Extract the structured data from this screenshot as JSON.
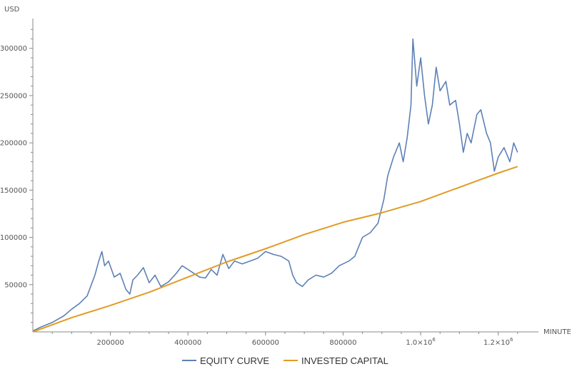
{
  "chart_data": {
    "type": "line",
    "xlabel": "MINUTE",
    "ylabel": "USD",
    "xlim": [
      0,
      1300000
    ],
    "ylim": [
      0,
      330000
    ],
    "x_ticks": [
      {
        "value": 200000,
        "label": "200000"
      },
      {
        "value": 400000,
        "label": "400000"
      },
      {
        "value": 600000,
        "label": "600000"
      },
      {
        "value": 800000,
        "label": "800000"
      },
      {
        "value": 1000000,
        "label": "1.0×10",
        "exp": "6"
      },
      {
        "value": 1200000,
        "label": "1.2×10",
        "exp": "6"
      }
    ],
    "y_ticks": [
      {
        "value": 50000,
        "label": "50000"
      },
      {
        "value": 100000,
        "label": "100000"
      },
      {
        "value": 150000,
        "label": "150000"
      },
      {
        "value": 200000,
        "label": "200000"
      },
      {
        "value": 250000,
        "label": "250000"
      },
      {
        "value": 300000,
        "label": "300000"
      }
    ],
    "grid": false,
    "legend": "bottom",
    "series": [
      {
        "name": "EQUITY CURVE",
        "color": "#5e81b5",
        "points": [
          [
            0,
            1000
          ],
          [
            20000,
            5000
          ],
          [
            50000,
            10000
          ],
          [
            80000,
            17000
          ],
          [
            100000,
            24000
          ],
          [
            120000,
            30000
          ],
          [
            140000,
            38000
          ],
          [
            160000,
            60000
          ],
          [
            170000,
            75000
          ],
          [
            178000,
            85000
          ],
          [
            185000,
            70000
          ],
          [
            195000,
            75000
          ],
          [
            210000,
            58000
          ],
          [
            225000,
            62000
          ],
          [
            240000,
            45000
          ],
          [
            250000,
            40000
          ],
          [
            258000,
            55000
          ],
          [
            270000,
            60000
          ],
          [
            285000,
            68000
          ],
          [
            300000,
            52000
          ],
          [
            315000,
            60000
          ],
          [
            330000,
            48000
          ],
          [
            350000,
            53000
          ],
          [
            370000,
            62000
          ],
          [
            385000,
            70000
          ],
          [
            400000,
            66000
          ],
          [
            415000,
            62000
          ],
          [
            430000,
            58000
          ],
          [
            445000,
            57000
          ],
          [
            460000,
            66000
          ],
          [
            475000,
            60000
          ],
          [
            490000,
            82000
          ],
          [
            505000,
            67000
          ],
          [
            520000,
            75000
          ],
          [
            540000,
            72000
          ],
          [
            560000,
            75000
          ],
          [
            580000,
            78000
          ],
          [
            600000,
            85000
          ],
          [
            620000,
            82000
          ],
          [
            640000,
            80000
          ],
          [
            660000,
            75000
          ],
          [
            670000,
            60000
          ],
          [
            680000,
            52000
          ],
          [
            695000,
            48000
          ],
          [
            710000,
            55000
          ],
          [
            730000,
            60000
          ],
          [
            750000,
            58000
          ],
          [
            770000,
            62000
          ],
          [
            790000,
            70000
          ],
          [
            815000,
            75000
          ],
          [
            830000,
            80000
          ],
          [
            850000,
            100000
          ],
          [
            870000,
            105000
          ],
          [
            890000,
            115000
          ],
          [
            905000,
            140000
          ],
          [
            915000,
            165000
          ],
          [
            930000,
            185000
          ],
          [
            945000,
            200000
          ],
          [
            955000,
            180000
          ],
          [
            965000,
            205000
          ],
          [
            975000,
            240000
          ],
          [
            980000,
            310000
          ],
          [
            990000,
            260000
          ],
          [
            1000000,
            290000
          ],
          [
            1010000,
            250000
          ],
          [
            1020000,
            220000
          ],
          [
            1030000,
            240000
          ],
          [
            1040000,
            280000
          ],
          [
            1050000,
            255000
          ],
          [
            1065000,
            265000
          ],
          [
            1075000,
            240000
          ],
          [
            1090000,
            245000
          ],
          [
            1100000,
            220000
          ],
          [
            1110000,
            190000
          ],
          [
            1120000,
            210000
          ],
          [
            1130000,
            200000
          ],
          [
            1145000,
            230000
          ],
          [
            1155000,
            235000
          ],
          [
            1170000,
            210000
          ],
          [
            1180000,
            200000
          ],
          [
            1190000,
            170000
          ],
          [
            1200000,
            185000
          ],
          [
            1215000,
            195000
          ],
          [
            1230000,
            180000
          ],
          [
            1240000,
            200000
          ],
          [
            1250000,
            190000
          ]
        ]
      },
      {
        "name": "INVESTED CAPITAL",
        "color": "#e19c24",
        "points": [
          [
            0,
            0
          ],
          [
            100000,
            15000
          ],
          [
            200000,
            28000
          ],
          [
            300000,
            42000
          ],
          [
            400000,
            58000
          ],
          [
            500000,
            74000
          ],
          [
            600000,
            88000
          ],
          [
            700000,
            103000
          ],
          [
            800000,
            116000
          ],
          [
            900000,
            126000
          ],
          [
            1000000,
            138000
          ],
          [
            1100000,
            153000
          ],
          [
            1200000,
            168000
          ],
          [
            1250000,
            175000
          ]
        ]
      }
    ]
  }
}
